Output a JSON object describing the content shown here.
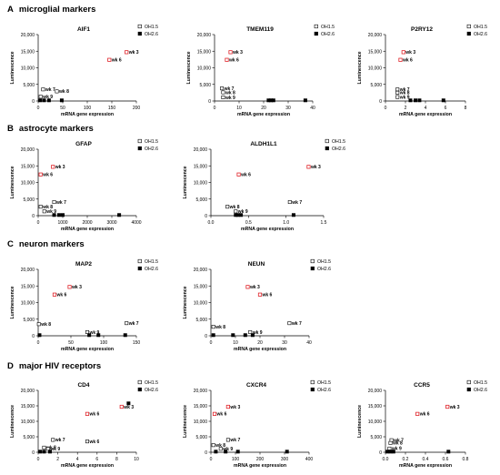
{
  "sections": [
    {
      "letter": "A",
      "title": "microglial markers"
    },
    {
      "letter": "B",
      "title": "astrocyte markers"
    },
    {
      "letter": "C",
      "title": "neuron markers"
    },
    {
      "letter": "D",
      "title": "major HIV receptors"
    }
  ],
  "colors": {
    "highlight": "#e0242a",
    "marker_filled": "#000000",
    "marker_open_edge": "#000000"
  },
  "chart_data": [
    {
      "type": "scatter",
      "section": "A",
      "title": "AIF1",
      "xlabel": "mRNA gene expression",
      "ylabel": "Luminescence",
      "xlim": [
        0,
        200
      ],
      "xticks": [
        0,
        50,
        100,
        150,
        200
      ],
      "ylim": [
        0,
        20000
      ],
      "yticks": [
        0,
        5000,
        10000,
        15000,
        20000
      ],
      "ytick_labels": [
        "0",
        "5,000",
        "10,000",
        "15,000",
        "20,000"
      ],
      "series": [
        {
          "name": "OH1.5",
          "marker": "open",
          "points": [
            {
              "x": 10,
              "y": 3500,
              "label": "wk 7"
            },
            {
              "x": 38,
              "y": 2900,
              "label": "wk 8"
            },
            {
              "x": 5,
              "y": 1300,
              "label": "wk 9"
            },
            {
              "x": 145,
              "y": 12400,
              "label": "wk 6",
              "highlight": true
            },
            {
              "x": 180,
              "y": 14700,
              "label": "wk 3",
              "highlight": true
            }
          ]
        },
        {
          "name": "OH2.6",
          "marker": "filled",
          "points": [
            {
              "x": 4,
              "y": 200
            },
            {
              "x": 12,
              "y": 200
            },
            {
              "x": 22,
              "y": 200
            },
            {
              "x": 48,
              "y": 200
            }
          ]
        }
      ],
      "legend": "top-right"
    },
    {
      "type": "scatter",
      "section": "A",
      "title": "TMEM119",
      "xlabel": "mRNA gene expression",
      "ylabel": "Luminescence",
      "xlim": [
        0,
        40
      ],
      "xticks": [
        0,
        10,
        20,
        30,
        40
      ],
      "ylim": [
        0,
        20000
      ],
      "yticks": [
        0,
        5000,
        10000,
        15000,
        20000
      ],
      "ytick_labels": [
        "0",
        "5,000",
        "10,000",
        "15,000",
        "20,000"
      ],
      "series": [
        {
          "name": "OH1.5",
          "marker": "open",
          "points": [
            {
              "x": 3,
              "y": 3800,
              "label": "wk 7"
            },
            {
              "x": 3.5,
              "y": 2600,
              "label": "wk 8"
            },
            {
              "x": 3.5,
              "y": 1100,
              "label": "wk 9"
            },
            {
              "x": 5,
              "y": 12400,
              "label": "wk 6",
              "highlight": true
            },
            {
              "x": 6.5,
              "y": 14700,
              "label": "wk 3",
              "highlight": true
            }
          ]
        },
        {
          "name": "OH2.6",
          "marker": "filled",
          "points": [
            {
              "x": 22,
              "y": 200
            },
            {
              "x": 23,
              "y": 200
            },
            {
              "x": 24,
              "y": 200
            },
            {
              "x": 37,
              "y": 200
            }
          ]
        }
      ],
      "legend": "top-right"
    },
    {
      "type": "scatter",
      "section": "A",
      "title": "P2RY12",
      "xlabel": "mRNA gene expression",
      "ylabel": "Luminescence",
      "xlim": [
        0,
        8
      ],
      "xticks": [
        0,
        2,
        4,
        6,
        8
      ],
      "ylim": [
        0,
        20000
      ],
      "yticks": [
        0,
        5000,
        10000,
        15000,
        20000
      ],
      "ytick_labels": [
        "0",
        "5,000",
        "10,000",
        "15,000",
        "20,000"
      ],
      "series": [
        {
          "name": "OH1.5",
          "marker": "open",
          "points": [
            {
              "x": 1.2,
              "y": 3500,
              "label": "wk 7"
            },
            {
              "x": 1.2,
              "y": 2500,
              "label": "wk 8"
            },
            {
              "x": 1.2,
              "y": 1200,
              "label": "wk 9"
            },
            {
              "x": 1.5,
              "y": 12400,
              "label": "wk 6",
              "highlight": true
            },
            {
              "x": 1.8,
              "y": 14700,
              "label": "wk 3",
              "highlight": true
            }
          ]
        },
        {
          "name": "OH2.6",
          "marker": "filled",
          "points": [
            {
              "x": 2.5,
              "y": 200
            },
            {
              "x": 3.0,
              "y": 200
            },
            {
              "x": 3.4,
              "y": 200
            },
            {
              "x": 5.8,
              "y": 200
            }
          ]
        }
      ],
      "legend": "top-right"
    },
    {
      "type": "scatter",
      "section": "B",
      "title": "GFAP",
      "xlabel": "mRNA gene expression",
      "ylabel": "Luminescence",
      "xlim": [
        0,
        4000
      ],
      "xticks": [
        0,
        1000,
        2000,
        3000,
        4000
      ],
      "ylim": [
        0,
        20000
      ],
      "yticks": [
        0,
        5000,
        10000,
        15000,
        20000
      ],
      "ytick_labels": [
        "0",
        "5,000",
        "10,000",
        "15,000",
        "20,000"
      ],
      "series": [
        {
          "name": "OH1.5",
          "marker": "open",
          "points": [
            {
              "x": 650,
              "y": 4100,
              "label": "wk 7"
            },
            {
              "x": 100,
              "y": 2700,
              "label": "wk 8"
            },
            {
              "x": 250,
              "y": 1300,
              "label": "wk 9"
            },
            {
              "x": 100,
              "y": 12400,
              "label": "wk 6",
              "highlight": true
            },
            {
              "x": 600,
              "y": 14700,
              "label": "wk 3",
              "highlight": true
            }
          ]
        },
        {
          "name": "OH2.6",
          "marker": "filled",
          "points": [
            {
              "x": 650,
              "y": 200
            },
            {
              "x": 850,
              "y": 200
            },
            {
              "x": 1000,
              "y": 200
            },
            {
              "x": 3300,
              "y": 200
            }
          ]
        }
      ],
      "legend": "top-right"
    },
    {
      "type": "scatter",
      "section": "B",
      "title": "ALDH1L1",
      "xlabel": "mRNA gene expression",
      "ylabel": "Luminescence",
      "xlim": [
        0,
        1.5
      ],
      "xticks": [
        0,
        0.5,
        1.0,
        1.5
      ],
      "xtick_labels": [
        "0.0",
        "0.5",
        "1.0",
        "1.5"
      ],
      "ylim": [
        0,
        20000
      ],
      "yticks": [
        0,
        5000,
        10000,
        15000,
        20000
      ],
      "ytick_labels": [
        "0",
        "5,000",
        "10,000",
        "15,000",
        "20,000"
      ],
      "series": [
        {
          "name": "OH1.5",
          "marker": "open",
          "points": [
            {
              "x": 1.05,
              "y": 4100,
              "label": "wk 7"
            },
            {
              "x": 0.22,
              "y": 2700,
              "label": "wk 8"
            },
            {
              "x": 0.33,
              "y": 1300,
              "label": "wk 9"
            },
            {
              "x": 0.37,
              "y": 12400,
              "label": "wk 6",
              "highlight": true
            },
            {
              "x": 1.3,
              "y": 14700,
              "label": "wk 3",
              "highlight": true
            }
          ]
        },
        {
          "name": "OH2.6",
          "marker": "filled",
          "points": [
            {
              "x": 0.33,
              "y": 200
            },
            {
              "x": 0.36,
              "y": 200
            },
            {
              "x": 0.4,
              "y": 200
            },
            {
              "x": 1.1,
              "y": 200
            }
          ]
        }
      ],
      "legend": "top-right"
    },
    {
      "type": "scatter",
      "section": "C",
      "title": "MAP2",
      "xlabel": "mRNA gene expression",
      "ylabel": "Luminescence",
      "xlim": [
        0,
        150
      ],
      "xticks": [
        0,
        50,
        100,
        150
      ],
      "ylim": [
        0,
        20000
      ],
      "yticks": [
        0,
        5000,
        10000,
        15000,
        20000
      ],
      "ytick_labels": [
        "0",
        "5,000",
        "10,000",
        "15,000",
        "20,000"
      ],
      "series": [
        {
          "name": "OH1.5",
          "marker": "open",
          "points": [
            {
              "x": 1,
              "y": 3500,
              "label": "wk 8"
            },
            {
              "x": 75,
              "y": 1100,
              "label": "wk 9"
            },
            {
              "x": 135,
              "y": 3800,
              "label": "wk 7"
            },
            {
              "x": 25,
              "y": 12400,
              "label": "wk 6",
              "highlight": true
            },
            {
              "x": 48,
              "y": 14700,
              "label": "wk 3",
              "highlight": true
            }
          ]
        },
        {
          "name": "OH2.6",
          "marker": "filled",
          "points": [
            {
              "x": 2,
              "y": 200
            },
            {
              "x": 78,
              "y": 200
            },
            {
              "x": 92,
              "y": 200
            },
            {
              "x": 133,
              "y": 200
            }
          ]
        }
      ],
      "legend": "top-right"
    },
    {
      "type": "scatter",
      "section": "C",
      "title": "NEUN",
      "xlabel": "mRNA gene expression",
      "ylabel": "Luminescence",
      "xlim": [
        0,
        40
      ],
      "xticks": [
        0,
        10,
        20,
        30,
        40
      ],
      "ylim": [
        0,
        20000
      ],
      "yticks": [
        0,
        5000,
        10000,
        15000,
        20000
      ],
      "ytick_labels": [
        "0",
        "5,000",
        "10,000",
        "15,000",
        "20,000"
      ],
      "series": [
        {
          "name": "OH1.5",
          "marker": "open",
          "points": [
            {
              "x": 1,
              "y": 2700,
              "label": "wk 8"
            },
            {
              "x": 16,
              "y": 1100,
              "label": "wk 9"
            },
            {
              "x": 32,
              "y": 3800,
              "label": "wk 7"
            },
            {
              "x": 20,
              "y": 12400,
              "label": "wk 6",
              "highlight": true
            },
            {
              "x": 15,
              "y": 14700,
              "label": "wk 3",
              "highlight": true
            }
          ]
        },
        {
          "name": "OH2.6",
          "marker": "filled",
          "points": [
            {
              "x": 1,
              "y": 200
            },
            {
              "x": 9,
              "y": 200
            },
            {
              "x": 14,
              "y": 200
            },
            {
              "x": 17,
              "y": 200
            }
          ]
        }
      ],
      "legend": "top-right"
    },
    {
      "type": "scatter",
      "section": "D",
      "title": "CD4",
      "xlabel": "mRNA gene expression",
      "ylabel": "Luminescence",
      "xlim": [
        0,
        10
      ],
      "xticks": [
        0,
        2,
        4,
        6,
        8,
        10
      ],
      "ylim": [
        0,
        20000
      ],
      "yticks": [
        0,
        5000,
        10000,
        15000,
        20000
      ],
      "ytick_labels": [
        "0",
        "5,000",
        "10,000",
        "15,000",
        "20,000"
      ],
      "series": [
        {
          "name": "OH1.5",
          "marker": "open",
          "points": [
            {
              "x": 1.5,
              "y": 4000,
              "label": "wk 7"
            },
            {
              "x": 0.6,
              "y": 1500,
              "label": "wk 8"
            },
            {
              "x": 1.0,
              "y": 1100,
              "label": "wk 9"
            },
            {
              "x": 5.0,
              "y": 3500,
              "label": "wk 6"
            },
            {
              "x": 5.0,
              "y": 12400,
              "label": "wk 6",
              "highlight": true
            },
            {
              "x": 8.5,
              "y": 14700,
              "label": "wk 3",
              "highlight": true
            }
          ]
        },
        {
          "name": "OH2.6",
          "marker": "filled",
          "points": [
            {
              "x": 0.2,
              "y": 200
            },
            {
              "x": 0.6,
              "y": 200
            },
            {
              "x": 1.2,
              "y": 200
            },
            {
              "x": 9.2,
              "y": 15800
            }
          ]
        }
      ],
      "legend": "top-right"
    },
    {
      "type": "scatter",
      "section": "D",
      "title": "CXCR4",
      "xlabel": "mRNA gene expression",
      "ylabel": "Luminescence",
      "xlim": [
        0,
        400
      ],
      "xticks": [
        0,
        100,
        200,
        300,
        400
      ],
      "ylim": [
        0,
        20000
      ],
      "yticks": [
        0,
        5000,
        10000,
        15000,
        20000
      ],
      "ytick_labels": [
        "0",
        "5,000",
        "10,000",
        "15,000",
        "20,000"
      ],
      "series": [
        {
          "name": "OH1.5",
          "marker": "open",
          "points": [
            {
              "x": 70,
              "y": 4000,
              "label": "wk 7"
            },
            {
              "x": 10,
              "y": 2300,
              "label": "wk 8"
            },
            {
              "x": 40,
              "y": 1100,
              "label": "wk 9"
            },
            {
              "x": 15,
              "y": 12400,
              "label": "wk 6",
              "highlight": true
            },
            {
              "x": 70,
              "y": 14700,
              "label": "wk 3",
              "highlight": true
            }
          ]
        },
        {
          "name": "OH2.6",
          "marker": "filled",
          "points": [
            {
              "x": 20,
              "y": 200
            },
            {
              "x": 60,
              "y": 200
            },
            {
              "x": 110,
              "y": 200
            },
            {
              "x": 310,
              "y": 200
            }
          ]
        }
      ],
      "legend": "top-right"
    },
    {
      "type": "scatter",
      "section": "D",
      "title": "CCR5",
      "xlabel": "mRNA gene expression",
      "ylabel": "Luminescence",
      "xlim": [
        0,
        0.8
      ],
      "xticks": [
        0,
        0.2,
        0.4,
        0.6,
        0.8
      ],
      "xtick_labels": [
        "0.0",
        "0.2",
        "0.4",
        "0.6",
        "0.8"
      ],
      "ylim": [
        0,
        20000
      ],
      "yticks": [
        0,
        5000,
        10000,
        15000,
        20000
      ],
      "ytick_labels": [
        "0",
        "5,000",
        "10,000",
        "15,000",
        "20,000"
      ],
      "series": [
        {
          "name": "OH1.5",
          "marker": "open",
          "points": [
            {
              "x": 0.06,
              "y": 3900,
              "label": "wk 7"
            },
            {
              "x": 0.05,
              "y": 3000,
              "label": "wk 8"
            },
            {
              "x": 0.04,
              "y": 1200,
              "label": "wk 9"
            },
            {
              "x": 0.32,
              "y": 12400,
              "label": "wk 6",
              "highlight": true
            },
            {
              "x": 0.62,
              "y": 14700,
              "label": "wk 3",
              "highlight": true
            }
          ]
        },
        {
          "name": "OH2.6",
          "marker": "filled",
          "points": [
            {
              "x": 0.02,
              "y": 200
            },
            {
              "x": 0.05,
              "y": 200
            },
            {
              "x": 0.08,
              "y": 200
            },
            {
              "x": 0.63,
              "y": 200
            }
          ]
        }
      ],
      "legend": "top-right"
    }
  ]
}
